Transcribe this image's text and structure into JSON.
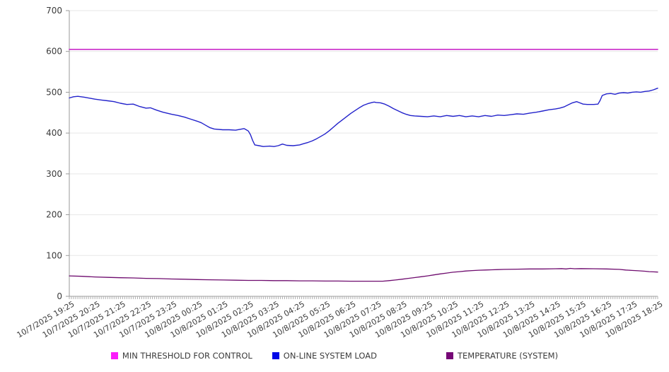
{
  "chart_data": {
    "type": "line",
    "title": "",
    "xlabel": "",
    "ylabel": "",
    "ylim": [
      0,
      700
    ],
    "y_ticks": [
      0,
      100,
      200,
      300,
      400,
      500,
      600,
      700
    ],
    "grid": "horizontal",
    "legend_position": "bottom",
    "x_minor_tick_minutes": 5,
    "x_major_tick_minutes": 60,
    "x_range_minutes": [
      0,
      1380
    ],
    "x_tick_labels": [
      "10/7/2025 19:25",
      "10/7/2025 20:25",
      "10/7/2025 21:25",
      "10/7/2025 22:25",
      "10/7/2025 23:25",
      "10/8/2025 00:25",
      "10/8/2025 01:25",
      "10/8/2025 02:25",
      "10/8/2025 03:25",
      "10/8/2025 04:25",
      "10/8/2025 05:25",
      "10/8/2025 06:25",
      "10/8/2025 07:25",
      "10/8/2025 08:25",
      "10/8/2025 09:25",
      "10/8/2025 10:25",
      "10/8/2025 11:25",
      "10/8/2025 12:25",
      "10/8/2025 13:25",
      "10/8/2025 14:25",
      "10/8/2025 15:25",
      "10/8/2025 16:25",
      "10/8/2025 17:25",
      "10/8/2025 18:25"
    ],
    "series": [
      {
        "name": "MIN THRESHOLD FOR CONTROL",
        "color": "#c92ac9",
        "legend_color": "#fb1cfb",
        "width": 1.7,
        "points": [
          [
            0,
            605
          ],
          [
            1380,
            605
          ]
        ]
      },
      {
        "name": "ON-LINE SYSTEM LOAD",
        "color": "#2222cb",
        "legend_color": "#0008e8",
        "width": 1.4,
        "points": [
          [
            0,
            486
          ],
          [
            10,
            489
          ],
          [
            20,
            490
          ],
          [
            35,
            488
          ],
          [
            50,
            485
          ],
          [
            60,
            483
          ],
          [
            75,
            481
          ],
          [
            90,
            479
          ],
          [
            105,
            477
          ],
          [
            120,
            473
          ],
          [
            135,
            470
          ],
          [
            150,
            471
          ],
          [
            165,
            465
          ],
          [
            180,
            461
          ],
          [
            190,
            462
          ],
          [
            205,
            456
          ],
          [
            220,
            451
          ],
          [
            240,
            446
          ],
          [
            255,
            443
          ],
          [
            270,
            439
          ],
          [
            285,
            434
          ],
          [
            300,
            429
          ],
          [
            310,
            425
          ],
          [
            320,
            419
          ],
          [
            330,
            413
          ],
          [
            340,
            410
          ],
          [
            360,
            408
          ],
          [
            375,
            408
          ],
          [
            390,
            407
          ],
          [
            400,
            409
          ],
          [
            410,
            411
          ],
          [
            415,
            408
          ],
          [
            420,
            405
          ],
          [
            425,
            396
          ],
          [
            430,
            382
          ],
          [
            435,
            371
          ],
          [
            445,
            369
          ],
          [
            455,
            367
          ],
          [
            470,
            368
          ],
          [
            480,
            367
          ],
          [
            490,
            369
          ],
          [
            500,
            373
          ],
          [
            510,
            370
          ],
          [
            525,
            369
          ],
          [
            540,
            371
          ],
          [
            550,
            374
          ],
          [
            560,
            377
          ],
          [
            570,
            381
          ],
          [
            580,
            386
          ],
          [
            590,
            392
          ],
          [
            600,
            398
          ],
          [
            610,
            406
          ],
          [
            620,
            415
          ],
          [
            630,
            424
          ],
          [
            640,
            432
          ],
          [
            650,
            440
          ],
          [
            660,
            448
          ],
          [
            670,
            455
          ],
          [
            680,
            462
          ],
          [
            690,
            468
          ],
          [
            700,
            472
          ],
          [
            710,
            475
          ],
          [
            715,
            476
          ],
          [
            720,
            475
          ],
          [
            730,
            474
          ],
          [
            740,
            471
          ],
          [
            750,
            466
          ],
          [
            760,
            460
          ],
          [
            770,
            455
          ],
          [
            780,
            450
          ],
          [
            790,
            446
          ],
          [
            800,
            443
          ],
          [
            810,
            442
          ],
          [
            825,
            441
          ],
          [
            840,
            440
          ],
          [
            855,
            442
          ],
          [
            870,
            440
          ],
          [
            885,
            443
          ],
          [
            900,
            441
          ],
          [
            915,
            443
          ],
          [
            930,
            440
          ],
          [
            945,
            442
          ],
          [
            960,
            440
          ],
          [
            975,
            443
          ],
          [
            990,
            441
          ],
          [
            1005,
            444
          ],
          [
            1020,
            443
          ],
          [
            1035,
            445
          ],
          [
            1050,
            447
          ],
          [
            1065,
            446
          ],
          [
            1080,
            449
          ],
          [
            1095,
            451
          ],
          [
            1110,
            454
          ],
          [
            1125,
            457
          ],
          [
            1140,
            459
          ],
          [
            1150,
            461
          ],
          [
            1160,
            464
          ],
          [
            1170,
            469
          ],
          [
            1180,
            474
          ],
          [
            1190,
            477
          ],
          [
            1195,
            475
          ],
          [
            1205,
            471
          ],
          [
            1215,
            470
          ],
          [
            1230,
            470
          ],
          [
            1240,
            471
          ],
          [
            1245,
            480
          ],
          [
            1250,
            492
          ],
          [
            1260,
            496
          ],
          [
            1270,
            497
          ],
          [
            1280,
            495
          ],
          [
            1290,
            498
          ],
          [
            1300,
            499
          ],
          [
            1310,
            498
          ],
          [
            1320,
            500
          ],
          [
            1330,
            501
          ],
          [
            1340,
            500
          ],
          [
            1350,
            502
          ],
          [
            1360,
            503
          ],
          [
            1370,
            506
          ],
          [
            1380,
            510
          ]
        ]
      },
      {
        "name": "TEMPERATURE (SYSTEM)",
        "color": "#6e0b6e",
        "legend_color": "#760876",
        "width": 1.3,
        "points": [
          [
            0,
            50
          ],
          [
            30,
            49
          ],
          [
            60,
            47.5
          ],
          [
            90,
            46.5
          ],
          [
            120,
            45.5
          ],
          [
            150,
            45
          ],
          [
            180,
            44
          ],
          [
            210,
            43.5
          ],
          [
            240,
            42.5
          ],
          [
            270,
            42
          ],
          [
            300,
            41
          ],
          [
            330,
            40.5
          ],
          [
            360,
            40
          ],
          [
            390,
            39.5
          ],
          [
            420,
            39
          ],
          [
            450,
            39
          ],
          [
            480,
            38.5
          ],
          [
            510,
            38.5
          ],
          [
            540,
            38
          ],
          [
            570,
            38
          ],
          [
            600,
            37.5
          ],
          [
            630,
            37.5
          ],
          [
            660,
            37
          ],
          [
            690,
            37
          ],
          [
            720,
            37
          ],
          [
            735,
            37
          ],
          [
            750,
            38.5
          ],
          [
            765,
            40
          ],
          [
            780,
            42
          ],
          [
            795,
            44
          ],
          [
            810,
            46
          ],
          [
            825,
            48
          ],
          [
            840,
            50
          ],
          [
            855,
            52.5
          ],
          [
            870,
            55
          ],
          [
            885,
            57
          ],
          [
            900,
            59
          ],
          [
            915,
            60.5
          ],
          [
            930,
            62
          ],
          [
            945,
            63
          ],
          [
            960,
            64
          ],
          [
            975,
            64.5
          ],
          [
            990,
            65
          ],
          [
            1005,
            65.5
          ],
          [
            1020,
            66
          ],
          [
            1050,
            66.5
          ],
          [
            1080,
            67
          ],
          [
            1110,
            67
          ],
          [
            1140,
            67.5
          ],
          [
            1155,
            68
          ],
          [
            1165,
            67
          ],
          [
            1175,
            68.5
          ],
          [
            1185,
            67.5
          ],
          [
            1200,
            68
          ],
          [
            1230,
            67.5
          ],
          [
            1260,
            67
          ],
          [
            1290,
            66
          ],
          [
            1305,
            64.5
          ],
          [
            1320,
            63.5
          ],
          [
            1335,
            62.5
          ],
          [
            1350,
            61.5
          ],
          [
            1360,
            60.5
          ],
          [
            1370,
            60
          ],
          [
            1380,
            59.5
          ]
        ]
      }
    ],
    "colors": {
      "grid": "#e7e7e7",
      "axis": "#9a9a9a",
      "minor_tick": "#b0b0b0",
      "tick_text": "#3b3b3b",
      "background": "#ffffff"
    }
  }
}
